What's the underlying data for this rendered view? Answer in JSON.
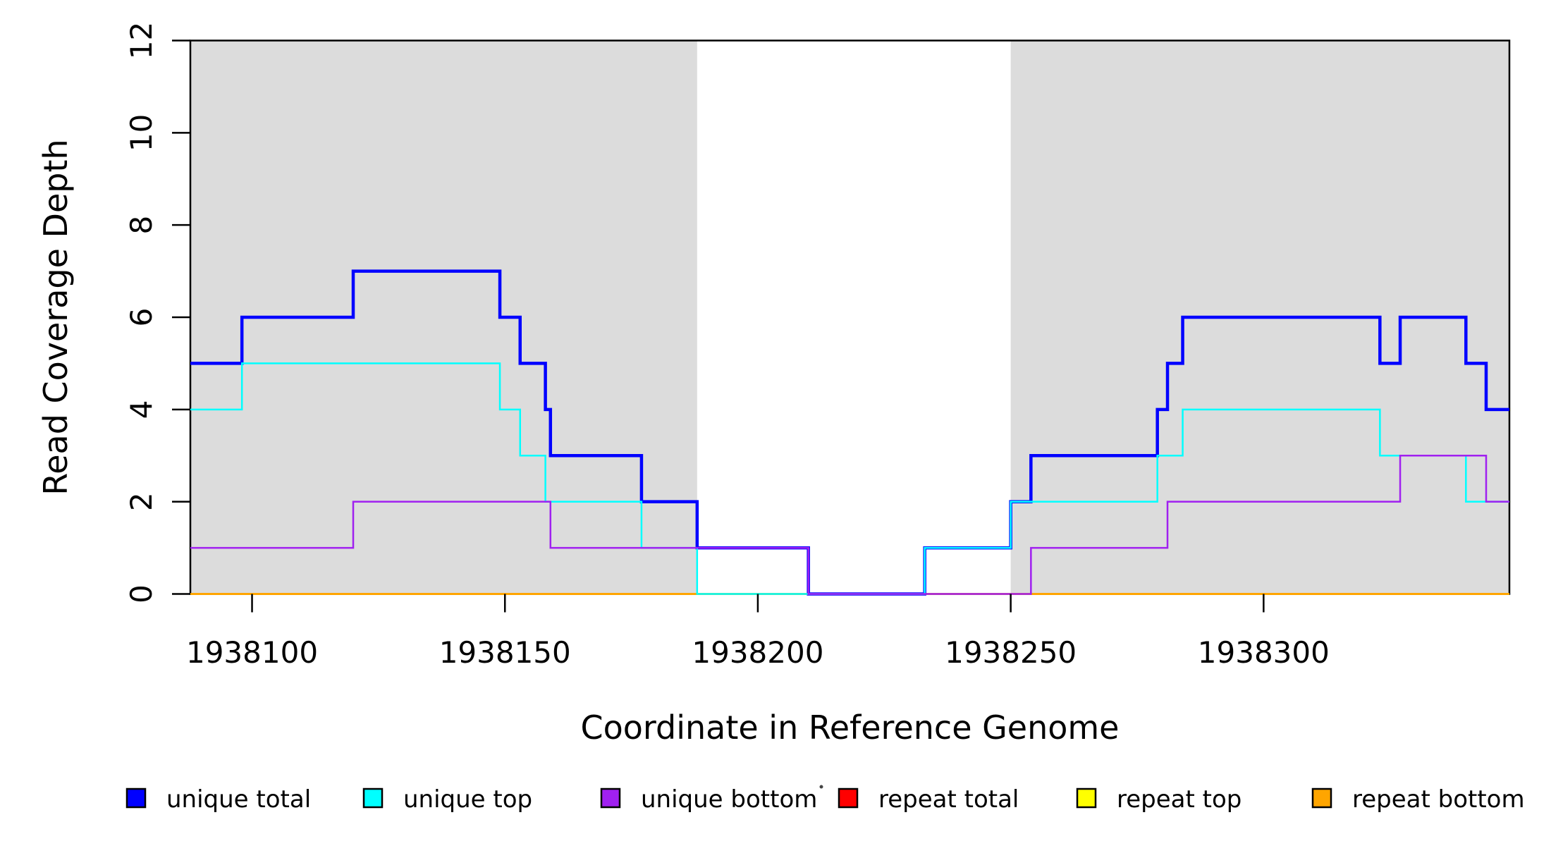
{
  "figure": {
    "xlabel": "Coordinate in Reference Genome",
    "ylabel": "Read Coverage Depth"
  },
  "chart_data": {
    "type": "line",
    "subtype": "step-coverage",
    "title": "",
    "xlabel": "Coordinate in Reference Genome",
    "ylabel": "Read Coverage Depth",
    "xlim": [
      1938087.8,
      1938348.6
    ],
    "ylim": [
      0,
      12
    ],
    "xticks": [
      1938100,
      1938150,
      1938200,
      1938250,
      1938300
    ],
    "yticks": [
      0,
      2,
      4,
      6,
      8,
      10,
      12
    ],
    "grid": false,
    "background_color": "#ffffff",
    "shaded_regions": [
      {
        "x0": 1938087.8,
        "x1": 1938188,
        "color": "#DCDCDC",
        "label": "repeat-masked-region-left"
      },
      {
        "x0": 1938250,
        "x1": 1938348.6,
        "color": "#DCDCDC",
        "label": "repeat-masked-region-right"
      }
    ],
    "series": [
      {
        "name": "repeat total",
        "color": "#FF0000",
        "line_width": 2.5,
        "start_value": 0,
        "steps": []
      },
      {
        "name": "repeat top",
        "color": "#FFFF00",
        "line_width": 2.5,
        "start_value": 0,
        "steps": []
      },
      {
        "name": "repeat bottom",
        "color": "#FFA500",
        "line_width": 3,
        "start_value": 0,
        "steps": []
      },
      {
        "name": "unique total",
        "color": "#0000FF",
        "line_width": 4.5,
        "start_value": 5,
        "steps": [
          [
            1938098,
            6
          ],
          [
            1938120,
            7
          ],
          [
            1938149,
            6
          ],
          [
            1938153,
            5
          ],
          [
            1938158,
            4
          ],
          [
            1938159,
            3
          ],
          [
            1938177,
            2
          ],
          [
            1938188,
            1
          ],
          [
            1938210,
            0
          ],
          [
            1938233,
            1
          ],
          [
            1938250,
            2
          ],
          [
            1938254,
            3
          ],
          [
            1938279,
            4
          ],
          [
            1938281,
            5
          ],
          [
            1938284,
            6
          ],
          [
            1938323,
            5
          ],
          [
            1938327,
            6
          ],
          [
            1938340,
            5
          ],
          [
            1938344,
            4
          ]
        ]
      },
      {
        "name": "unique top",
        "color": "#00FFFF",
        "line_width": 2.5,
        "start_value": 4,
        "steps": [
          [
            1938098,
            5
          ],
          [
            1938149,
            4
          ],
          [
            1938153,
            3
          ],
          [
            1938158,
            2
          ],
          [
            1938177,
            1
          ],
          [
            1938188,
            0
          ],
          [
            1938233,
            1
          ],
          [
            1938250,
            2
          ],
          [
            1938279,
            3
          ],
          [
            1938284,
            4
          ],
          [
            1938323,
            3
          ],
          [
            1938340,
            2
          ]
        ]
      },
      {
        "name": "unique bottom",
        "color": "#A020F0",
        "line_width": 2.5,
        "start_value": 1,
        "steps": [
          [
            1938120,
            2
          ],
          [
            1938159,
            1
          ],
          [
            1938210,
            0
          ],
          [
            1938254,
            1
          ],
          [
            1938281,
            2
          ],
          [
            1938327,
            3
          ],
          [
            1938344,
            2
          ]
        ]
      }
    ],
    "legend": {
      "position": "bottom",
      "items": [
        {
          "label": "unique total",
          "color": "#0000FF"
        },
        {
          "label": "unique top",
          "color": "#00FFFF"
        },
        {
          "label": "unique bottom",
          "color": "#A020F0"
        },
        {
          "label": "repeat total",
          "color": "#FF0000"
        },
        {
          "label": "repeat top",
          "color": "#FFFF00"
        },
        {
          "label": "repeat bottom",
          "color": "#FFA500"
        }
      ]
    }
  }
}
